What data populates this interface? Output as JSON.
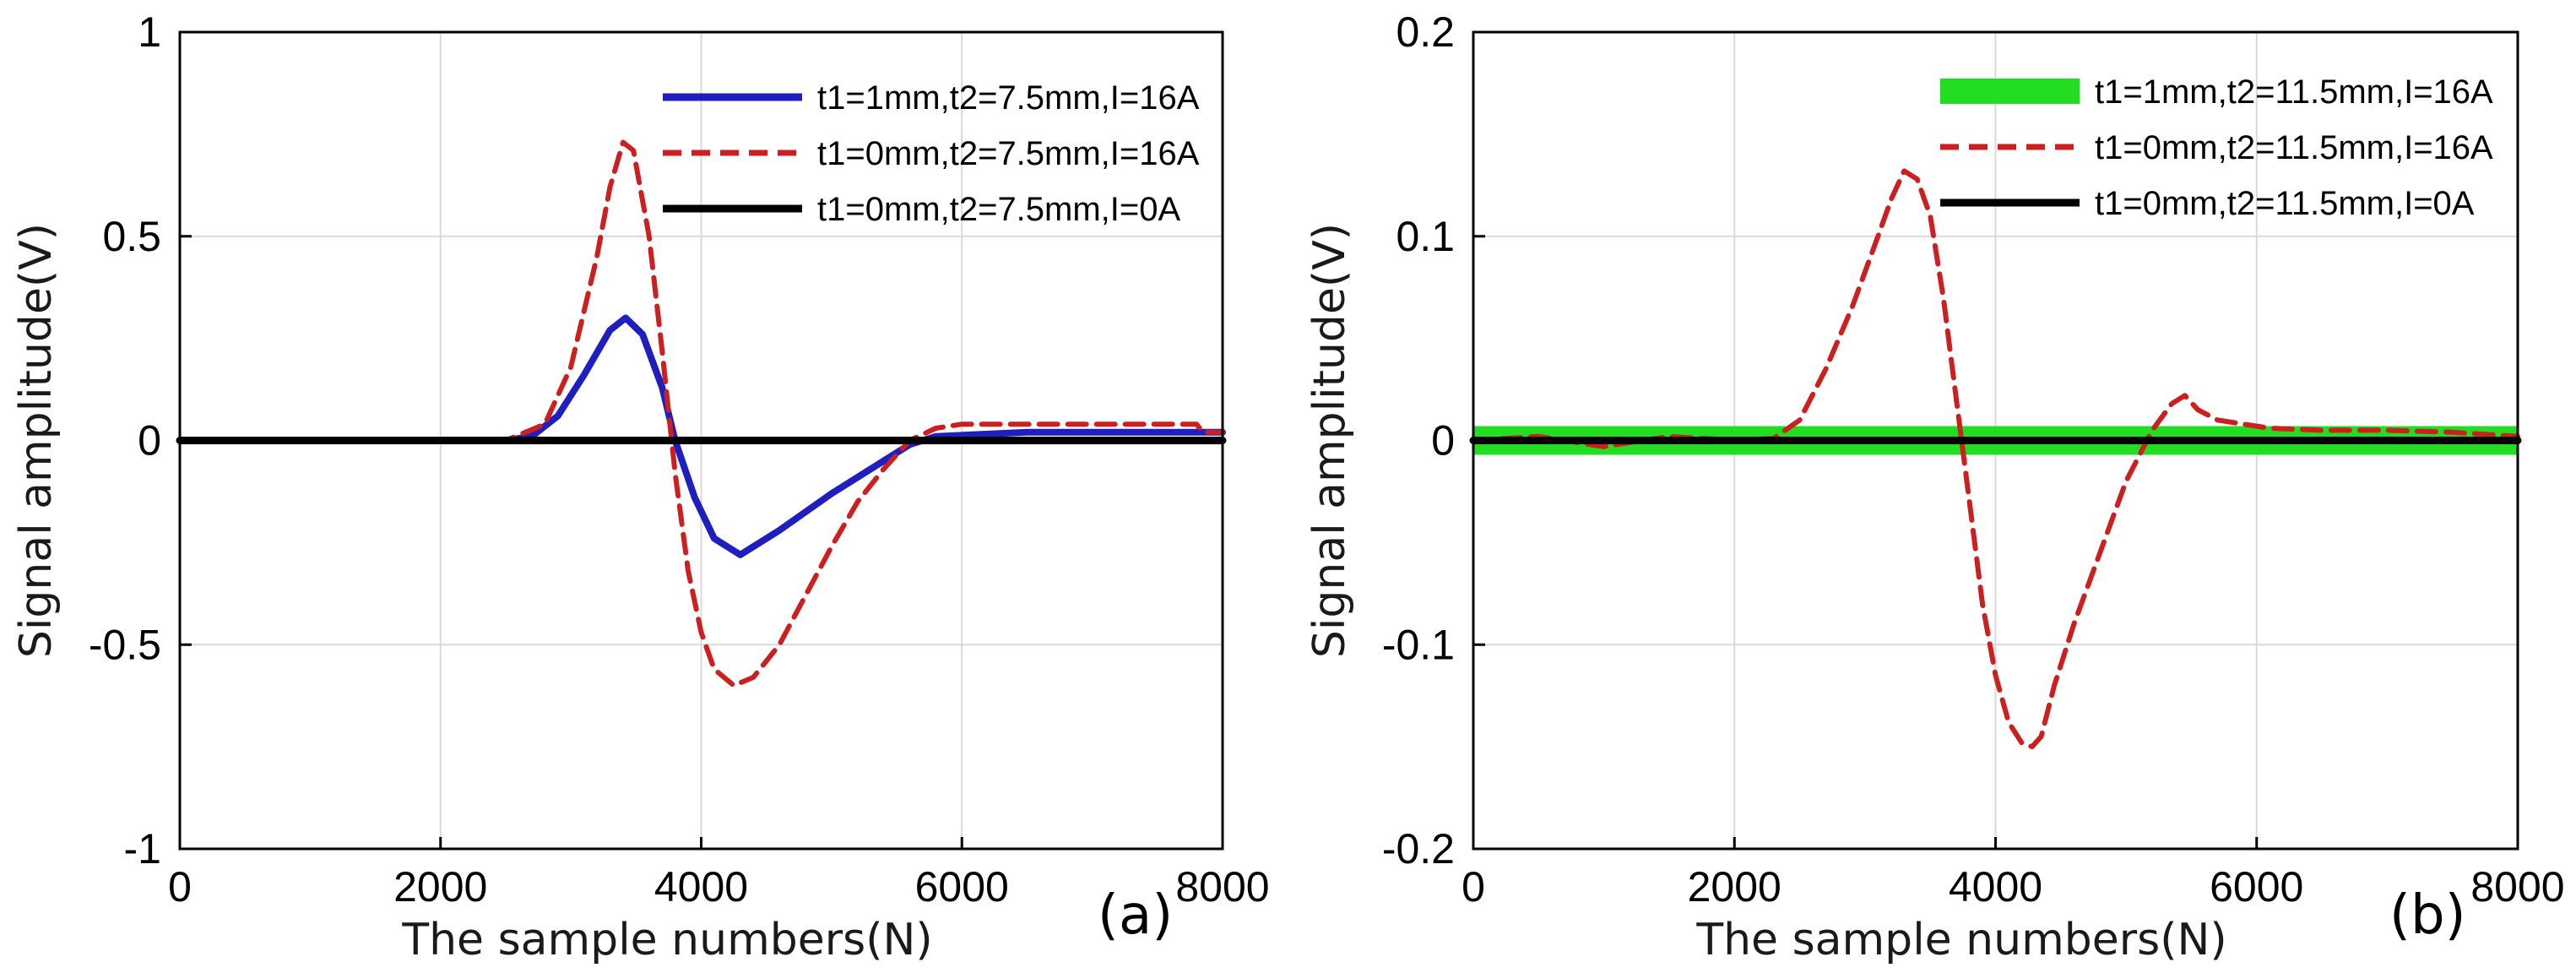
{
  "chart_data": [
    {
      "type": "line",
      "panel_label": "(a)",
      "xlabel": "The sample numbers(N)",
      "ylabel": "Signal amplitude(V)",
      "xlim": [
        0,
        8000
      ],
      "ylim": [
        -1,
        1
      ],
      "xticks": [
        0,
        2000,
        4000,
        6000,
        8000
      ],
      "yticks": [
        -1,
        -0.5,
        0,
        0.5,
        1
      ],
      "xtick_labels": [
        "0",
        "2000",
        "4000",
        "6000",
        "8000"
      ],
      "ytick_labels": [
        "-1",
        "-0.5",
        "0",
        "0.5",
        "1"
      ],
      "grid": true,
      "legend_position": "top-right",
      "series": [
        {
          "name": "t1=1mm,t2=7.5mm,I=16A",
          "color": "#1f1fbf",
          "style": "solid",
          "x": [
            0,
            2500,
            2700,
            2900,
            3100,
            3300,
            3420,
            3550,
            3700,
            3800,
            3950,
            4100,
            4300,
            4600,
            5000,
            5400,
            5600,
            5800,
            6500,
            7300,
            8000
          ],
          "y": [
            0,
            0,
            0.01,
            0.06,
            0.16,
            0.27,
            0.3,
            0.26,
            0.13,
            0,
            -0.14,
            -0.24,
            -0.28,
            -0.22,
            -0.13,
            -0.05,
            -0.01,
            0.01,
            0.02,
            0.02,
            0.02
          ]
        },
        {
          "name": "t1=0mm,t2=7.5mm,I=16A",
          "color": "#cc2020",
          "style": "dashed",
          "x": [
            0,
            2500,
            2800,
            3000,
            3200,
            3300,
            3400,
            3480,
            3600,
            3700,
            3800,
            3900,
            4000,
            4100,
            4250,
            4400,
            4600,
            4800,
            5000,
            5200,
            5400,
            5600,
            5800,
            6000,
            7800,
            7850,
            8000
          ],
          "y": [
            0,
            0,
            0.04,
            0.18,
            0.45,
            0.62,
            0.73,
            0.71,
            0.5,
            0.22,
            -0.08,
            -0.32,
            -0.47,
            -0.56,
            -0.6,
            -0.58,
            -0.5,
            -0.38,
            -0.26,
            -0.15,
            -0.07,
            0,
            0.03,
            0.04,
            0.04,
            0.02,
            0.02
          ]
        },
        {
          "name": "t1=0mm,t2=7.5mm,I=0A",
          "color": "#000000",
          "style": "solid",
          "x": [
            0,
            8000
          ],
          "y": [
            0,
            0
          ]
        }
      ]
    },
    {
      "type": "line",
      "panel_label": "(b)",
      "xlabel": "The sample numbers(N)",
      "ylabel": "Signal amplitude(V)",
      "xlim": [
        0,
        8000
      ],
      "ylim": [
        -0.2,
        0.2
      ],
      "xticks": [
        0,
        2000,
        4000,
        6000,
        8000
      ],
      "yticks": [
        -0.2,
        -0.1,
        0,
        0.1,
        0.2
      ],
      "xtick_labels": [
        "0",
        "2000",
        "4000",
        "6000",
        "8000"
      ],
      "ytick_labels": [
        "-0.2",
        "-0.1",
        "0",
        "0.1",
        "0.2"
      ],
      "grid": true,
      "legend_position": "top-right",
      "series": [
        {
          "name": "t1=1mm,t2=11.5mm,I=16A",
          "color": "#22dd22",
          "style": "thick-band",
          "x": [
            0,
            8000
          ],
          "y": [
            0,
            0
          ]
        },
        {
          "name": "t1=0mm,t2=11.5mm,I=16A",
          "color": "#cc2020",
          "style": "dashed",
          "x": [
            0,
            500,
            1000,
            1500,
            2000,
            2300,
            2500,
            2700,
            2900,
            3100,
            3200,
            3300,
            3400,
            3500,
            3600,
            3700,
            3800,
            3900,
            4000,
            4100,
            4200,
            4280,
            4350,
            4450,
            4600,
            4800,
            5000,
            5200,
            5350,
            5450,
            5550,
            5700,
            5900,
            6100,
            6500,
            7000,
            7500,
            8000
          ],
          "y": [
            0,
            0.002,
            -0.003,
            0.002,
            0,
            0.001,
            0.01,
            0.035,
            0.065,
            0.1,
            0.118,
            0.132,
            0.128,
            0.11,
            0.07,
            0.02,
            -0.03,
            -0.08,
            -0.115,
            -0.138,
            -0.148,
            -0.15,
            -0.145,
            -0.12,
            -0.09,
            -0.055,
            -0.02,
            0.005,
            0.018,
            0.022,
            0.015,
            0.01,
            0.008,
            0.006,
            0.005,
            0.005,
            0.004,
            0.002
          ]
        },
        {
          "name": "t1=0mm,t2=11.5mm,I=0A",
          "color": "#000000",
          "style": "solid",
          "x": [
            0,
            8000
          ],
          "y": [
            0,
            0
          ]
        }
      ]
    }
  ]
}
